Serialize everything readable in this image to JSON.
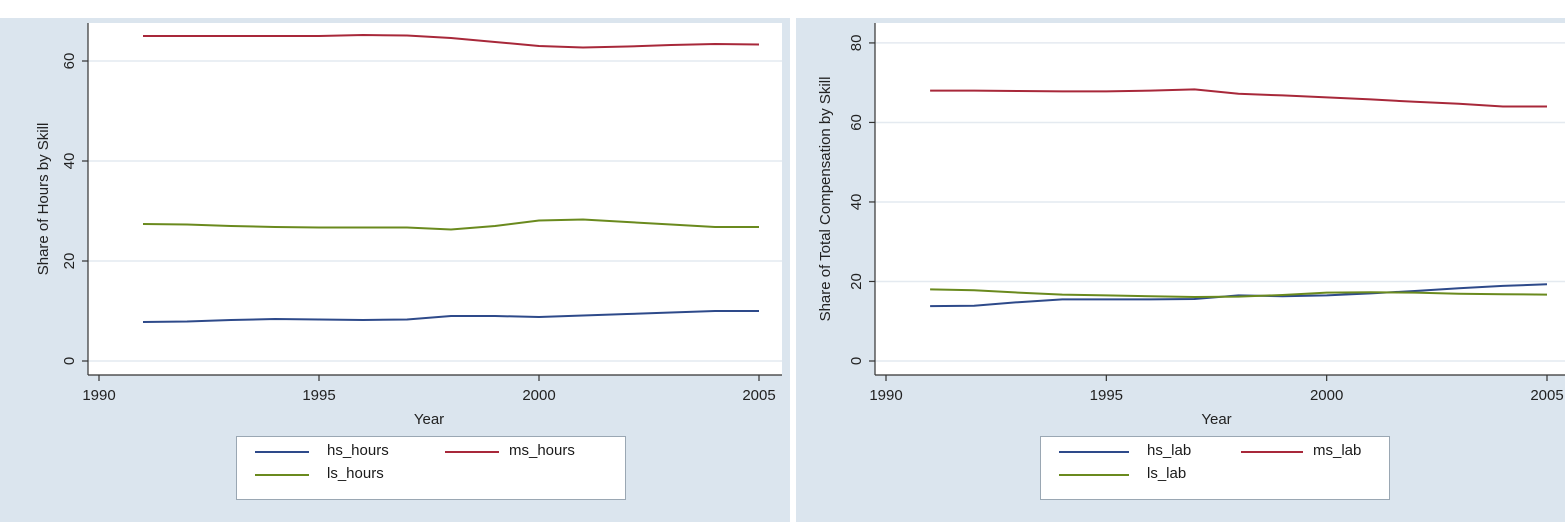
{
  "chart_data": [
    {
      "type": "line",
      "id": "left",
      "xlabel": "Year",
      "ylabel": "Share of Hours by Skill",
      "xlim": [
        1990,
        2005
      ],
      "ylim": [
        0,
        66
      ],
      "xticks": [
        1990,
        1995,
        2000,
        2005
      ],
      "yticks": [
        0,
        20,
        40,
        60
      ],
      "grid": true,
      "legend_position": "bottom",
      "x": [
        1991,
        1992,
        1993,
        1994,
        1995,
        1996,
        1997,
        1998,
        1999,
        2000,
        2001,
        2002,
        2003,
        2004,
        2005
      ],
      "series": [
        {
          "name": "hs_hours",
          "color": "#2e4a8a",
          "values": [
            7.8,
            7.9,
            8.2,
            8.4,
            8.3,
            8.2,
            8.3,
            9.0,
            9.0,
            8.8,
            9.1,
            9.4,
            9.7,
            10.0,
            10.0
          ]
        },
        {
          "name": "ms_hours",
          "color": "#a8283a",
          "values": [
            65.0,
            65.0,
            65.0,
            65.0,
            65.0,
            65.2,
            65.1,
            64.6,
            63.8,
            63.0,
            62.7,
            62.9,
            63.2,
            63.4,
            63.3
          ]
        },
        {
          "name": "ls_hours",
          "color": "#6a8a1e",
          "values": [
            27.4,
            27.3,
            27.0,
            26.8,
            26.7,
            26.7,
            26.7,
            26.3,
            27.0,
            28.1,
            28.3,
            27.8,
            27.3,
            26.8,
            26.8
          ]
        }
      ],
      "legend": [
        {
          "label": "hs_hours",
          "color": "#2e4a8a"
        },
        {
          "label": "ms_hours",
          "color": "#a8283a"
        },
        {
          "label": "ls_hours",
          "color": "#6a8a1e"
        }
      ]
    },
    {
      "type": "line",
      "id": "right",
      "xlabel": "Year",
      "ylabel": "Share of Total Compensation by Skill",
      "xlim": [
        1990,
        2005
      ],
      "ylim": [
        0,
        83
      ],
      "xticks": [
        1990,
        1995,
        2000,
        2005
      ],
      "yticks": [
        0,
        20,
        40,
        60,
        80
      ],
      "grid": true,
      "legend_position": "bottom",
      "x": [
        1991,
        1992,
        1993,
        1994,
        1995,
        1996,
        1997,
        1998,
        1999,
        2000,
        2001,
        2002,
        2003,
        2004,
        2005
      ],
      "series": [
        {
          "name": "hs_lab",
          "color": "#2e4a8a",
          "values": [
            13.8,
            13.9,
            14.8,
            15.5,
            15.5,
            15.5,
            15.6,
            16.5,
            16.3,
            16.5,
            17.0,
            17.6,
            18.3,
            18.9,
            19.3
          ]
        },
        {
          "name": "ms_lab",
          "color": "#a8283a",
          "values": [
            68.0,
            68.0,
            67.9,
            67.8,
            67.8,
            68.0,
            68.3,
            67.2,
            66.8,
            66.3,
            65.8,
            65.2,
            64.7,
            64.0,
            64.0
          ]
        },
        {
          "name": "ls_lab",
          "color": "#6a8a1e",
          "values": [
            18.0,
            17.8,
            17.2,
            16.7,
            16.5,
            16.3,
            16.1,
            16.2,
            16.6,
            17.2,
            17.3,
            17.2,
            16.9,
            16.8,
            16.7
          ]
        }
      ],
      "legend": [
        {
          "label": "hs_lab",
          "color": "#2e4a8a"
        },
        {
          "label": "ms_lab",
          "color": "#a8283a"
        },
        {
          "label": "ls_lab",
          "color": "#6a8a1e"
        }
      ]
    }
  ]
}
